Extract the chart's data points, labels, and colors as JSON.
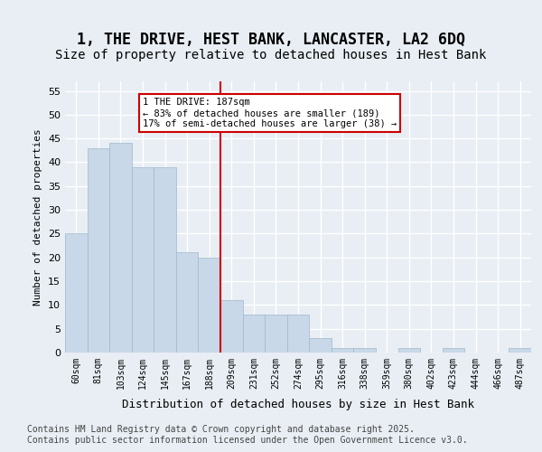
{
  "title": "1, THE DRIVE, HEST BANK, LANCASTER, LA2 6DQ",
  "subtitle": "Size of property relative to detached houses in Hest Bank",
  "xlabel": "Distribution of detached houses by size in Hest Bank",
  "ylabel": "Number of detached properties",
  "categories": [
    "60sqm",
    "81sqm",
    "103sqm",
    "124sqm",
    "145sqm",
    "167sqm",
    "188sqm",
    "209sqm",
    "231sqm",
    "252sqm",
    "274sqm",
    "295sqm",
    "316sqm",
    "338sqm",
    "359sqm",
    "380sqm",
    "402sqm",
    "423sqm",
    "444sqm",
    "466sqm",
    "487sqm"
  ],
  "values": [
    25,
    43,
    44,
    39,
    39,
    21,
    20,
    11,
    8,
    8,
    8,
    3,
    1,
    1,
    0,
    1,
    0,
    1,
    0,
    0,
    1
  ],
  "bar_color": "#c8d8e8",
  "bar_edgecolor": "#a0b8cc",
  "background_color": "#e8eef4",
  "grid_color": "#ffffff",
  "vline_x": 7,
  "vline_color": "#cc0000",
  "annotation_title": "1 THE DRIVE: 187sqm",
  "annotation_line1": "← 83% of detached houses are smaller (189)",
  "annotation_line2": "17% of semi-detached houses are larger (38) →",
  "annotation_box_color": "#cc0000",
  "ylim": [
    0,
    57
  ],
  "yticks": [
    0,
    5,
    10,
    15,
    20,
    25,
    30,
    35,
    40,
    45,
    50,
    55
  ],
  "footer_line1": "Contains HM Land Registry data © Crown copyright and database right 2025.",
  "footer_line2": "Contains public sector information licensed under the Open Government Licence v3.0.",
  "title_fontsize": 12,
  "subtitle_fontsize": 10,
  "footer_fontsize": 7
}
